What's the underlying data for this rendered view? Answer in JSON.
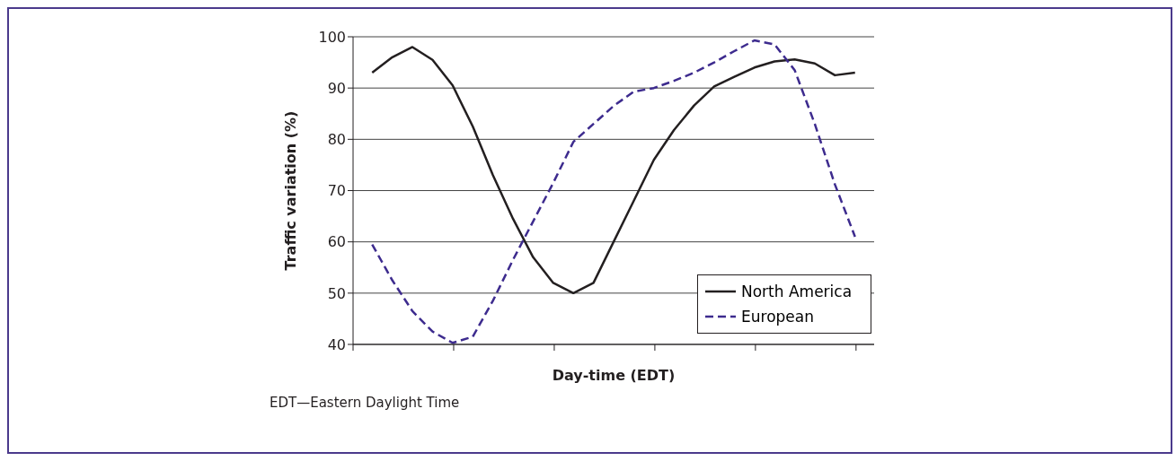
{
  "chart_data": {
    "type": "line",
    "xlabel": "Day-time (EDT)",
    "ylabel": "Traffic variation (%)",
    "annotations": [
      "EDT—Eastern Daylight Time"
    ],
    "categories": [
      null,
      null,
      null,
      null,
      null,
      null,
      null,
      null,
      null,
      null,
      null,
      null,
      null,
      null,
      null,
      null,
      null,
      null,
      null,
      null,
      null,
      null,
      null,
      null,
      null
    ],
    "ylim": [
      40,
      100
    ],
    "yticks": [
      40,
      50,
      60,
      70,
      80,
      90,
      100
    ],
    "tick_labels": "y",
    "grid": "y",
    "legend": "bottom right",
    "marker": "none",
    "series": [
      {
        "name": "North America",
        "color": "#231f20",
        "line_style": "solid",
        "values": [
          93,
          96,
          98,
          95.5,
          90.5,
          82.5,
          73,
          64.5,
          57,
          52,
          50,
          52,
          60,
          68,
          76,
          81.8,
          86.6,
          90.3,
          92.2,
          94,
          95.2,
          95.6,
          94.8,
          92.5,
          93
        ]
      },
      {
        "name": "European",
        "color": "#3d2b8e",
        "line_style": "dashed",
        "values": [
          59.5,
          52.5,
          46.5,
          42.5,
          40.3,
          41.5,
          48.5,
          56.5,
          64,
          71.5,
          79.5,
          83,
          86.5,
          89.3,
          90,
          91.4,
          93,
          95,
          97.2,
          99.3,
          98.5,
          93.5,
          83,
          71.2,
          61
        ]
      }
    ]
  }
}
